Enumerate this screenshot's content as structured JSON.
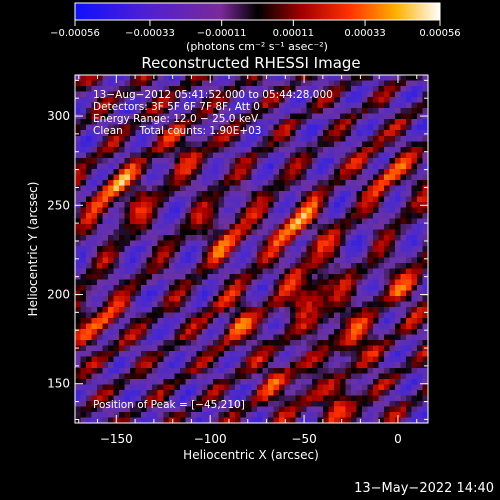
{
  "chart_data": {
    "type": "heatmap",
    "title": "Reconstructed RHESSI Image",
    "xlabel": "Heliocentric X (arcsec)",
    "ylabel": "Heliocentric Y (arcsec)",
    "xlim": [
      -172,
      16
    ],
    "ylim": [
      128,
      323
    ],
    "x_ticks": [
      -150,
      -100,
      -50,
      0
    ],
    "y_ticks": [
      150,
      200,
      250,
      300
    ],
    "x_tick_labels": [
      "−150",
      "−100",
      "−50",
      "0"
    ],
    "y_tick_labels": [
      "150",
      "200",
      "250",
      "300"
    ],
    "colorbar": {
      "ticks": [
        -0.00056,
        -0.00033,
        -0.00011,
        0.00011,
        0.00033,
        0.00056
      ],
      "tick_labels": [
        "−0.00056",
        "−0.00033",
        "−0.00011",
        "0.00011",
        "0.00033",
        "0.00056"
      ],
      "unit_label": "(photons cm⁻² s⁻¹ asec⁻²)",
      "range": [
        -0.00056,
        0.00056
      ]
    },
    "annotations": [
      "13−Aug−2012 05:41:52.000 to 05:44:28.000",
      "Detectors: 3F 5F 6F 7F 8F, Att 0",
      "Energy Range: 12.0 − 25.0 keV",
      "Clean     Total counts: 1.90E+03"
    ],
    "peak_label": "Position of Peak = [−45,210]",
    "peak": {
      "x": -45,
      "y": 210
    },
    "footer": "13−May−2022 14:40"
  }
}
